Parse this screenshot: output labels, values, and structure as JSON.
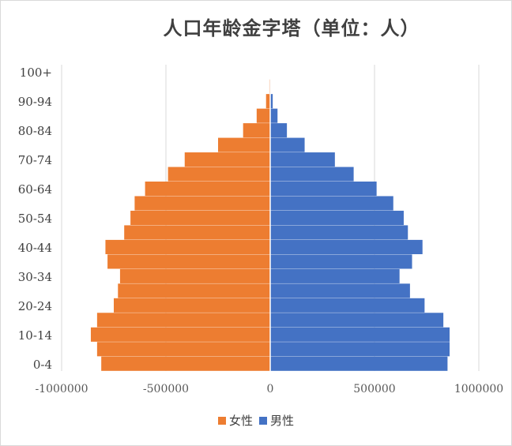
{
  "chart_data": {
    "type": "bar",
    "orientation": "horizontal",
    "title": "人口年龄金字塔（单位：人）",
    "categories": [
      "0-4",
      "5-9",
      "10-14",
      "15-19",
      "20-24",
      "25-29",
      "30-34",
      "35-39",
      "40-44",
      "45-49",
      "50-54",
      "55-59",
      "60-64",
      "65-69",
      "70-74",
      "75-79",
      "80-84",
      "85-89",
      "90-94",
      "95-99",
      "100+"
    ],
    "y_tick_labels": [
      "0-4",
      "10-14",
      "20-24",
      "30-34",
      "40-44",
      "50-54",
      "60-64",
      "70-74",
      "80-84",
      "90-94",
      "100+"
    ],
    "series": [
      {
        "name": "女性",
        "color": "#ED7D31",
        "values": [
          -810000,
          -830000,
          -860000,
          -830000,
          -750000,
          -730000,
          -720000,
          -780000,
          -790000,
          -700000,
          -670000,
          -650000,
          -600000,
          -490000,
          -410000,
          -250000,
          -130000,
          -65000,
          -20000,
          -4000,
          -1000
        ]
      },
      {
        "name": "男性",
        "color": "#4472C4",
        "values": [
          850000,
          860000,
          860000,
          830000,
          740000,
          670000,
          620000,
          680000,
          730000,
          660000,
          640000,
          590000,
          510000,
          400000,
          310000,
          165000,
          80000,
          35000,
          12000,
          2000,
          500
        ]
      }
    ],
    "xlim": [
      -1000000,
      1000000
    ],
    "x_tick_labels": [
      "-1000000",
      "-500000",
      "0",
      "500000",
      "1000000"
    ],
    "grid": true,
    "legend_position": "bottom"
  }
}
